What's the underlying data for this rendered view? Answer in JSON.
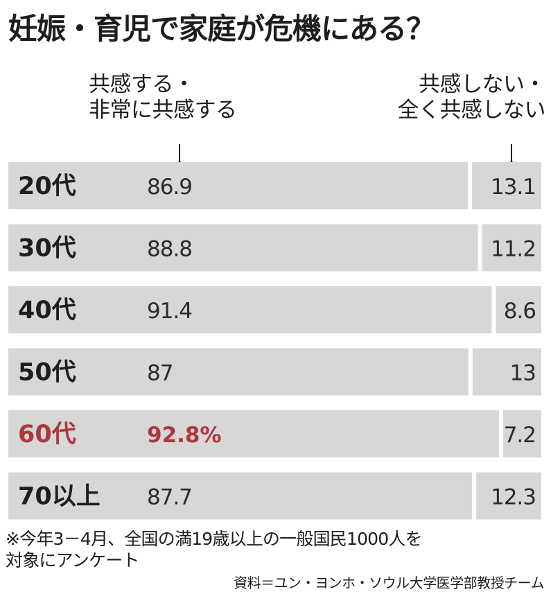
{
  "title": "妊娠・育児で家庭が危機にある？",
  "legend": {
    "agree_line1": "共感する・",
    "agree_line2": "非常に共感する",
    "disagree_line1": "共感しない・",
    "disagree_line2": "全く共感しない"
  },
  "chart_data": {
    "type": "bar",
    "stacked": true,
    "orientation": "horizontal",
    "categories": [
      "20代",
      "30代",
      "40代",
      "50代",
      "60代",
      "70以上"
    ],
    "series": [
      {
        "name": "共感する・非常に共感する",
        "values": [
          86.9,
          88.8,
          91.4,
          87,
          92.8,
          87.7
        ]
      },
      {
        "name": "共感しない・全く共感しない",
        "values": [
          13.1,
          11.2,
          8.6,
          13,
          7.2,
          12.3
        ]
      }
    ],
    "value_labels": {
      "agree": [
        "86.9",
        "88.8",
        "91.4",
        "87",
        "92.8%",
        "87.7"
      ],
      "disagree": [
        "13.1",
        "11.2",
        "8.6",
        "13",
        "7.2",
        "12.3"
      ]
    },
    "highlight_index": 4,
    "highlight_color": "#b0363c",
    "bar_color": "#d7d7d7",
    "xlim": [
      0,
      100
    ]
  },
  "footnote_line1": "※今年3－4月、全国の満19歳以上の一般国民1000人を",
  "footnote_line2": "対象にアンケート",
  "source": "資料＝ユン・ヨンホ・ソウル大学医学部教授チーム"
}
